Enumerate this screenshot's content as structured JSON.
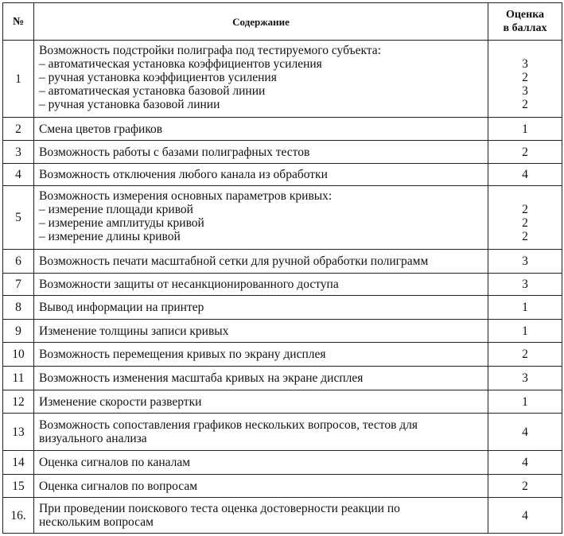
{
  "header": {
    "number": "№",
    "content": "Содержание",
    "score": [
      "Оценка",
      "в баллах"
    ]
  },
  "rows": [
    {
      "number": "1",
      "lines": [
        "Возможность подстройки полиграфа под тестируемого субъекта:"
      ],
      "items": [
        {
          "text": "– автоматическая установка коэффициентов усиления",
          "score": 3
        },
        {
          "text": "– ручная установка коэффициентов усиления",
          "score": 2
        },
        {
          "text": "– автоматическая установка базовой линии",
          "score": 3
        },
        {
          "text": "– ручная установка базовой линии",
          "score": 2
        }
      ]
    },
    {
      "number": "2",
      "lines": [
        "Смена цветов графиков"
      ],
      "score": 1
    },
    {
      "number": "3",
      "lines": [
        "Возможность работы с базами полиграфных тестов"
      ],
      "score": 2
    },
    {
      "number": "4",
      "lines": [
        "Возможность отключения любого канала из обработки"
      ],
      "score": 4
    },
    {
      "number": "5",
      "lines": [
        "Возможность измерения основных параметров кривых:"
      ],
      "items": [
        {
          "text": "– измерение площади кривой",
          "score": 2
        },
        {
          "text": "– измерение амплитуды кривой",
          "score": 2
        },
        {
          "text": "– измерение длины кривой",
          "score": 2
        }
      ]
    },
    {
      "number": "6",
      "lines": [
        "Возможность печати масштабной сетки для ручной обработки полиграмм"
      ],
      "score": 3
    },
    {
      "number": "7",
      "lines": [
        "Возможности защиты от несанкционированного доступа"
      ],
      "score": 3
    },
    {
      "number": "8",
      "lines": [
        "Вывод информации на принтер"
      ],
      "score": 1
    },
    {
      "number": "9",
      "lines": [
        "Изменение толщины записи кривых"
      ],
      "score": 1
    },
    {
      "number": "10",
      "lines": [
        "Возможность перемещения кривых по экрану дисплея"
      ],
      "score": 2
    },
    {
      "number": "11",
      "lines": [
        "Возможность изменения масштаба кривых на экране дисплея"
      ],
      "score": 3
    },
    {
      "number": "12",
      "lines": [
        "Изменение скорости развертки"
      ],
      "score": 1
    },
    {
      "number": "13",
      "lines": [
        "Возможность сопоставления графиков нескольких вопросов, тестов для",
        "визуального анализа"
      ],
      "score": 4
    },
    {
      "number": "14",
      "lines": [
        "Оценка сигналов по каналам"
      ],
      "score": 4
    },
    {
      "number": "15",
      "lines": [
        "Оценка сигналов по вопросам"
      ],
      "score": 2
    },
    {
      "number": "16.",
      "lines": [
        "При проведении поискового теста оценка достоверности реакции по",
        "нескольким вопросам"
      ],
      "score": 4
    }
  ]
}
